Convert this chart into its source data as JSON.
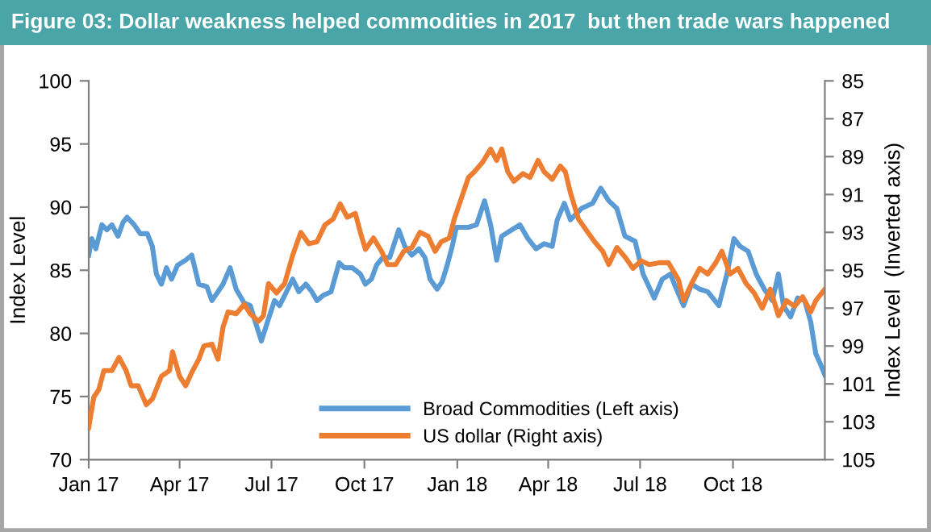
{
  "chart_data": {
    "type": "line",
    "title": "Figure 03: Dollar weakness helped commodities in 2017  but then trade wars happened",
    "ylabel": "Index Level",
    "y2label": "Index Level  (Inverted axis)",
    "xlim": [
      "2017-01-01",
      "2018-12-31"
    ],
    "xticks": [
      {
        "value": "2017-01-01",
        "label": "Jan 17"
      },
      {
        "value": "2017-04-01",
        "label": "Apr 17"
      },
      {
        "value": "2017-07-01",
        "label": "Jul 17"
      },
      {
        "value": "2017-10-01",
        "label": "Oct 17"
      },
      {
        "value": "2018-01-01",
        "label": "Jan 18"
      },
      {
        "value": "2018-04-01",
        "label": "Apr 18"
      },
      {
        "value": "2018-07-01",
        "label": "Jul 18"
      },
      {
        "value": "2018-10-01",
        "label": "Oct 18"
      }
    ],
    "ylim": [
      70,
      100
    ],
    "yticks": [
      70,
      75,
      80,
      85,
      90,
      95,
      100
    ],
    "y2lim": [
      105,
      85
    ],
    "y2ticks": [
      85,
      87,
      89,
      91,
      93,
      95,
      97,
      99,
      101,
      103,
      105
    ],
    "grid": false,
    "legend": "bottom right",
    "marker": "none",
    "line_style": "solid",
    "series": [
      {
        "name": "Broad Commodities (Left axis)",
        "color": "#5b9bd5",
        "x": [
          "2017-01-01",
          "2017-01-04",
          "2017-01-08",
          "2017-01-14",
          "2017-01-19",
          "2017-01-24",
          "2017-01-30",
          "2017-02-04",
          "2017-02-08",
          "2017-02-15",
          "2017-02-21",
          "2017-02-28",
          "2017-03-05",
          "2017-03-09",
          "2017-03-14",
          "2017-03-19",
          "2017-03-24",
          "2017-03-30",
          "2017-04-07",
          "2017-04-13",
          "2017-04-20",
          "2017-04-28",
          "2017-05-03",
          "2017-05-09",
          "2017-05-14",
          "2017-05-21",
          "2017-05-27",
          "2017-06-04",
          "2017-06-10",
          "2017-06-15",
          "2017-06-21",
          "2017-06-27",
          "2017-07-04",
          "2017-07-09",
          "2017-07-14",
          "2017-07-22",
          "2017-07-28",
          "2017-08-04",
          "2017-08-10",
          "2017-08-15",
          "2017-08-21",
          "2017-08-29",
          "2017-09-06",
          "2017-09-11",
          "2017-09-19",
          "2017-09-27",
          "2017-10-02",
          "2017-10-08",
          "2017-10-13",
          "2017-10-19",
          "2017-10-26",
          "2017-11-04",
          "2017-11-10",
          "2017-11-17",
          "2017-11-24",
          "2017-11-30",
          "2017-12-05",
          "2017-12-12",
          "2017-12-17",
          "2017-12-22",
          "2017-12-27",
          "2017-12-31",
          "2018-01-12",
          "2018-01-20",
          "2018-01-28",
          "2018-02-03",
          "2018-02-09",
          "2018-02-14",
          "2018-02-24",
          "2018-03-04",
          "2018-03-12",
          "2018-03-20",
          "2018-03-28",
          "2018-04-05",
          "2018-04-10",
          "2018-04-17",
          "2018-04-23",
          "2018-05-04",
          "2018-05-15",
          "2018-05-23",
          "2018-05-31",
          "2018-06-08",
          "2018-06-16",
          "2018-06-26",
          "2018-07-04",
          "2018-07-15",
          "2018-07-23",
          "2018-07-31",
          "2018-08-05",
          "2018-08-13",
          "2018-08-21",
          "2018-08-29",
          "2018-09-06",
          "2018-09-17",
          "2018-09-25",
          "2018-10-02",
          "2018-10-08",
          "2018-10-16",
          "2018-10-24",
          "2018-11-01",
          "2018-11-09",
          "2018-11-15",
          "2018-11-20",
          "2018-11-27",
          "2018-12-04",
          "2018-12-11",
          "2018-12-17",
          "2018-12-22",
          "2018-12-27",
          "2018-12-31"
        ],
        "values": [
          86.2,
          87.5,
          86.7,
          88.6,
          88.2,
          88.6,
          87.7,
          88.8,
          89.2,
          88.6,
          87.9,
          87.9,
          86.9,
          84.7,
          83.9,
          85.2,
          84.3,
          85.4,
          85.8,
          86.2,
          83.9,
          83.7,
          82.6,
          83.3,
          83.9,
          85.2,
          83.5,
          82.4,
          82.2,
          80.9,
          79.4,
          80.9,
          82.6,
          82.2,
          83.0,
          84.3,
          83.3,
          83.9,
          83.3,
          82.6,
          83.0,
          83.3,
          85.6,
          85.2,
          85.2,
          84.7,
          83.9,
          84.3,
          85.4,
          86.0,
          86.0,
          88.2,
          86.9,
          86.2,
          86.7,
          86.0,
          84.3,
          83.5,
          84.1,
          85.4,
          86.9,
          88.4,
          88.4,
          88.6,
          90.5,
          88.6,
          85.8,
          87.7,
          88.2,
          88.6,
          87.5,
          86.7,
          87.1,
          86.9,
          89.0,
          90.3,
          89.0,
          89.9,
          90.3,
          91.5,
          90.5,
          89.9,
          87.7,
          87.3,
          84.7,
          82.8,
          84.3,
          84.7,
          83.7,
          82.2,
          83.9,
          83.5,
          83.3,
          82.2,
          84.7,
          87.5,
          86.9,
          86.5,
          84.7,
          83.5,
          82.6,
          84.7,
          82.2,
          81.3,
          82.8,
          82.6,
          80.9,
          78.4,
          77.5,
          76.7
        ]
      },
      {
        "name": "US dollar (Right axis)",
        "color": "#ed7d31",
        "axis": "y2",
        "x": [
          "2017-01-01",
          "2017-01-06",
          "2017-01-11",
          "2017-01-16",
          "2017-01-24",
          "2017-01-31",
          "2017-02-07",
          "2017-02-12",
          "2017-02-19",
          "2017-02-27",
          "2017-03-05",
          "2017-03-14",
          "2017-03-22",
          "2017-03-25",
          "2017-04-01",
          "2017-04-07",
          "2017-04-13",
          "2017-04-20",
          "2017-04-25",
          "2017-05-03",
          "2017-05-09",
          "2017-05-14",
          "2017-05-19",
          "2017-05-27",
          "2017-06-04",
          "2017-06-10",
          "2017-06-18",
          "2017-06-23",
          "2017-06-28",
          "2017-07-06",
          "2017-07-14",
          "2017-07-22",
          "2017-07-30",
          "2017-08-07",
          "2017-08-15",
          "2017-08-23",
          "2017-08-31",
          "2017-09-07",
          "2017-09-14",
          "2017-09-22",
          "2017-09-27",
          "2017-10-02",
          "2017-10-10",
          "2017-10-18",
          "2017-10-24",
          "2017-11-01",
          "2017-11-09",
          "2017-11-17",
          "2017-11-25",
          "2017-12-03",
          "2017-12-10",
          "2017-12-16",
          "2017-12-24",
          "2017-12-29",
          "2018-01-12",
          "2018-01-18",
          "2018-01-26",
          "2018-02-03",
          "2018-02-09",
          "2018-02-14",
          "2018-02-20",
          "2018-02-26",
          "2018-03-07",
          "2018-03-14",
          "2018-03-22",
          "2018-03-28",
          "2018-04-05",
          "2018-04-13",
          "2018-04-18",
          "2018-04-23",
          "2018-05-01",
          "2018-05-09",
          "2018-05-17",
          "2018-05-25",
          "2018-05-31",
          "2018-06-08",
          "2018-06-16",
          "2018-06-24",
          "2018-07-02",
          "2018-07-10",
          "2018-07-20",
          "2018-07-29",
          "2018-08-08",
          "2018-08-13",
          "2018-08-21",
          "2018-08-29",
          "2018-09-06",
          "2018-09-14",
          "2018-09-20",
          "2018-09-28",
          "2018-10-06",
          "2018-10-14",
          "2018-10-22",
          "2018-10-30",
          "2018-11-07",
          "2018-11-15",
          "2018-11-23",
          "2018-12-01",
          "2018-12-09",
          "2018-12-17",
          "2018-12-22",
          "2018-12-31"
        ],
        "values": [
          103.3,
          101.7,
          101.3,
          100.3,
          100.3,
          99.6,
          100.3,
          101.1,
          101.1,
          102.1,
          101.8,
          100.6,
          100.3,
          99.3,
          100.6,
          101.1,
          100.4,
          99.7,
          99.0,
          98.9,
          99.7,
          98.0,
          97.2,
          97.3,
          96.8,
          97.3,
          97.7,
          97.4,
          95.7,
          96.2,
          95.7,
          94.2,
          93.0,
          93.6,
          93.5,
          92.6,
          92.3,
          91.5,
          92.2,
          92.0,
          93.0,
          93.9,
          93.3,
          94.0,
          94.7,
          94.7,
          94.0,
          93.8,
          93.0,
          93.2,
          94.0,
          93.5,
          93.3,
          92.3,
          90.1,
          89.8,
          89.3,
          88.6,
          89.2,
          88.6,
          89.8,
          90.3,
          89.9,
          90.1,
          89.2,
          89.8,
          90.2,
          89.5,
          89.8,
          90.9,
          92.3,
          92.9,
          93.5,
          94.0,
          94.7,
          93.8,
          94.3,
          94.9,
          94.5,
          94.7,
          94.6,
          94.6,
          95.5,
          96.6,
          95.7,
          94.9,
          95.2,
          94.6,
          94.0,
          95.2,
          94.9,
          95.7,
          96.2,
          97.0,
          96.0,
          97.4,
          96.6,
          96.9,
          96.4,
          97.2,
          96.6,
          96.0
        ]
      }
    ]
  }
}
